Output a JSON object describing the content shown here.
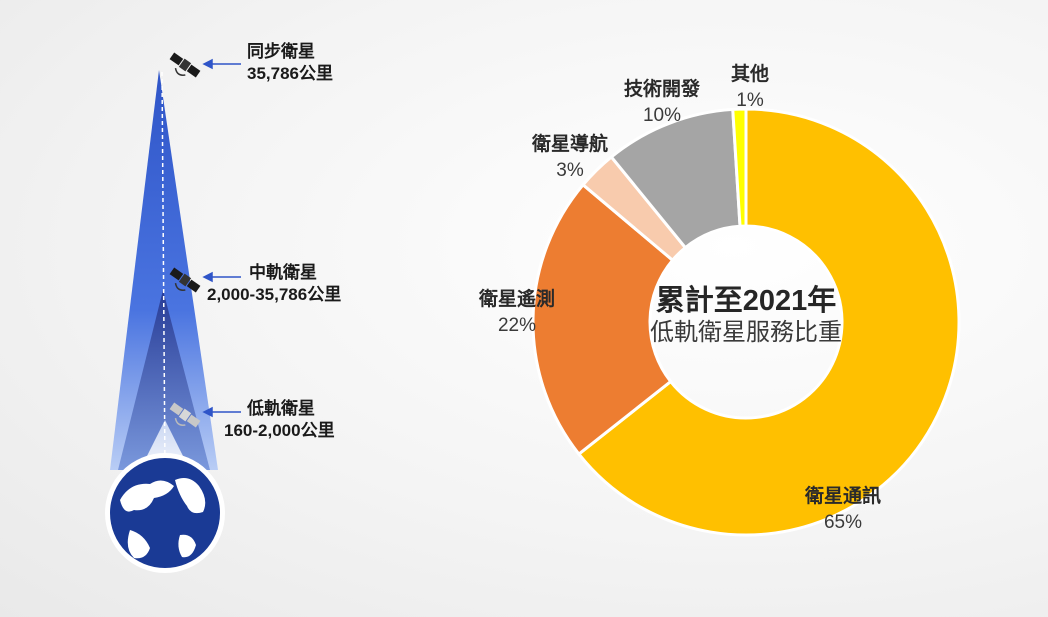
{
  "orbits": [
    {
      "name": "同步衛星",
      "altitude": "35,786公里"
    },
    {
      "name": "中軌衛星",
      "altitude": "2,000-35,786公里"
    },
    {
      "name": "低軌衛星",
      "altitude": "160-2,000公里"
    }
  ],
  "chart_data": {
    "type": "pie",
    "style": "donut",
    "title": "累計至2021年",
    "subtitle": "低軌衛星服務比重",
    "categories": [
      "衛星通訊",
      "衛星遙測",
      "衛星導航",
      "技術開發",
      "其他"
    ],
    "values": [
      65,
      22,
      3,
      10,
      1
    ],
    "value_labels": [
      "65%",
      "22%",
      "3%",
      "10%",
      "1%"
    ],
    "colors": [
      "#ffc000",
      "#ed7d31",
      "#f8cbad",
      "#a5a5a5",
      "#ffff00"
    ]
  }
}
